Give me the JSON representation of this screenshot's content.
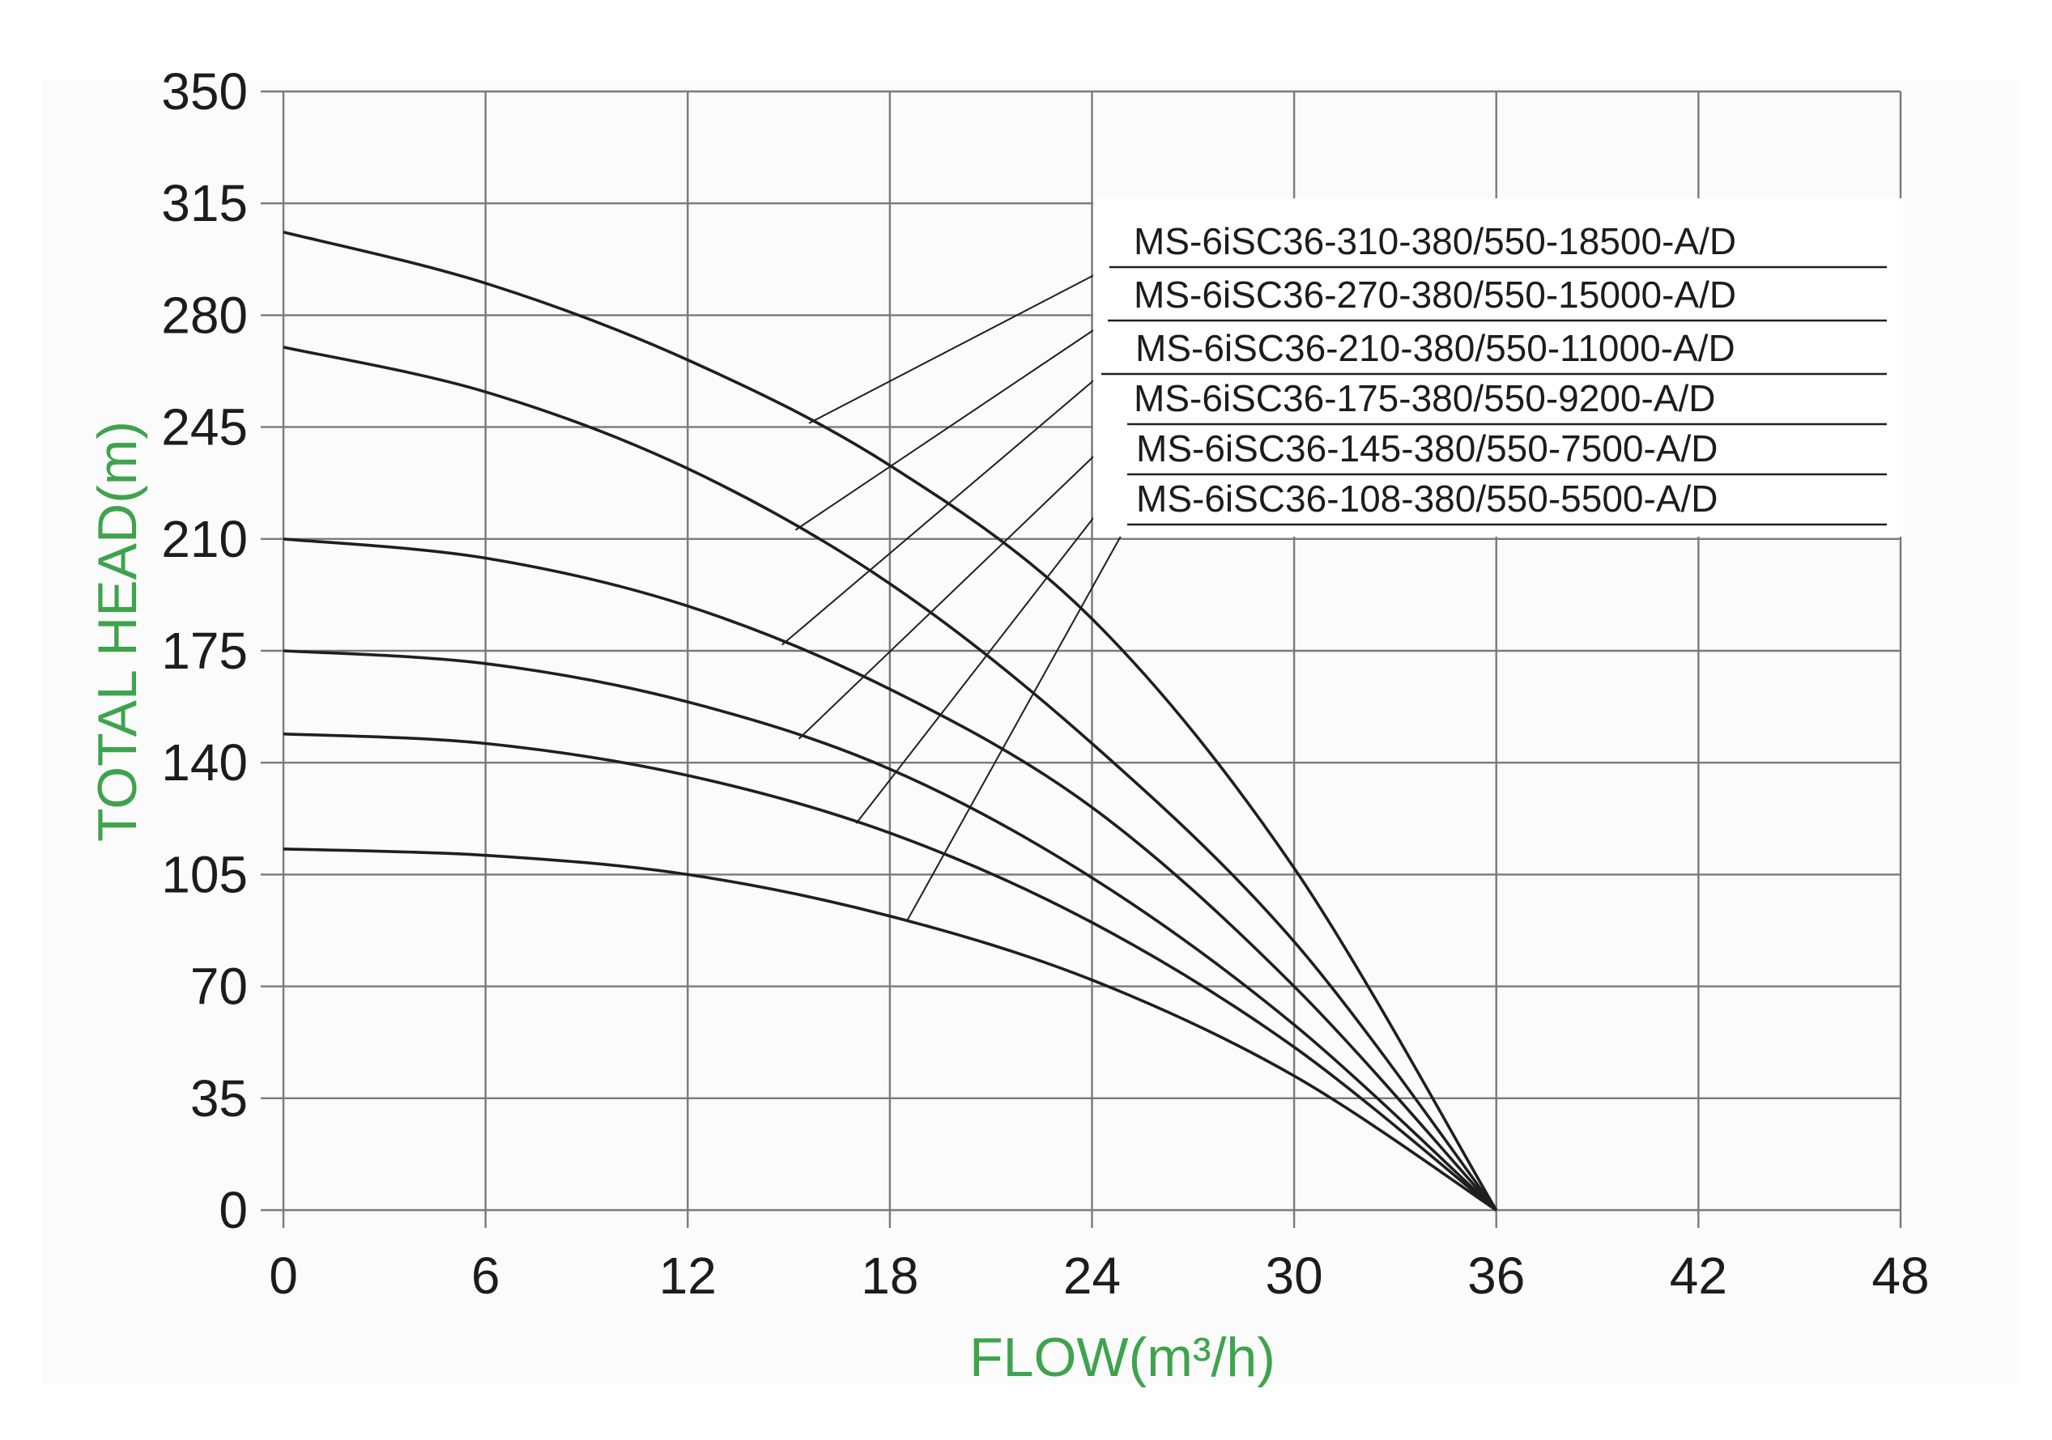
{
  "chart_data": {
    "type": "line",
    "xlabel": "FLOW(m³/h)",
    "ylabel": "TOTAL HEAD(m)",
    "xlim": [
      0,
      48
    ],
    "ylim": [
      0,
      350
    ],
    "x_ticks": [
      "0",
      "6",
      "12",
      "18",
      "24",
      "30",
      "36",
      "42",
      "48"
    ],
    "y_ticks": [
      "0",
      "35",
      "70",
      "105",
      "140",
      "175",
      "210",
      "245",
      "280",
      "315",
      "350"
    ],
    "grid": true,
    "legend": "top-right, leader lines to curves",
    "series": [
      {
        "name": "MS-6iSC36-310-380/550-18500-A/D",
        "x": [
          0,
          6,
          12,
          18,
          24,
          30,
          36
        ],
        "values": [
          306,
          290,
          266,
          233,
          185,
          107,
          0
        ]
      },
      {
        "name": "MS-6iSC36-270-380/550-15000-A/D",
        "x": [
          0,
          6,
          12,
          18,
          24,
          30,
          36
        ],
        "values": [
          270,
          256,
          232,
          196,
          146,
          84,
          0
        ]
      },
      {
        "name": "MS-6iSC36-210-380/550-11000-A/D",
        "x": [
          0,
          6,
          12,
          18,
          24,
          30,
          36
        ],
        "values": [
          210,
          204,
          189,
          163,
          126,
          70,
          0
        ]
      },
      {
        "name": "MS-6iSC36-175-380/550-9200-A/D",
        "x": [
          0,
          6,
          12,
          18,
          24,
          30,
          36
        ],
        "values": [
          175,
          171,
          159,
          138,
          104,
          58,
          0
        ]
      },
      {
        "name": "MS-6iSC36-145-380/550-7500-A/D",
        "x": [
          0,
          6,
          12,
          18,
          24,
          30,
          36
        ],
        "values": [
          149,
          146,
          136,
          118,
          90,
          51,
          0
        ]
      },
      {
        "name": "MS-6iSC36-108-380/550-5500-A/D",
        "x": [
          0,
          6,
          12,
          18,
          24,
          30,
          36
        ],
        "values": [
          113,
          111,
          105,
          92,
          72,
          42,
          0
        ]
      }
    ],
    "leader_anchor_x": [
      15.6,
      15.2,
      14.8,
      15.3,
      17,
      18.5
    ]
  },
  "colors": {
    "axis_title": "#3fa34d",
    "grid": "#7a7a7a",
    "curve": "#1f1f1f",
    "text": "#1c1c1c"
  }
}
